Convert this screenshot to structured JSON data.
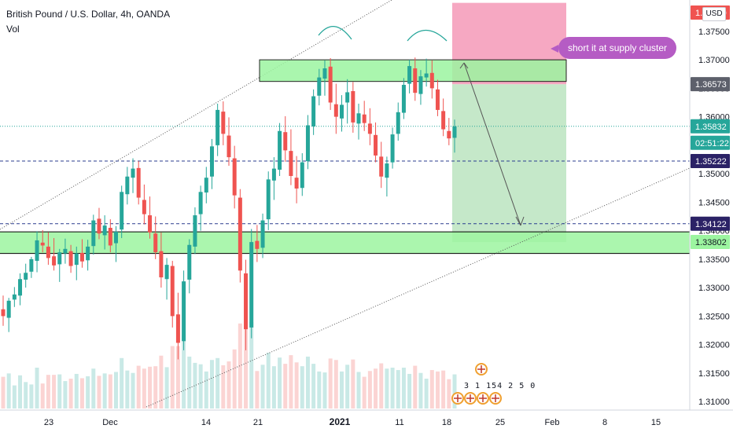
{
  "header": {
    "symbol_line": "British Pound / U.S. Dollar, 4h, OANDA",
    "indicator": "Vol"
  },
  "currency_button": "USD",
  "annotation": "short it at supply cluster",
  "event_markers_text": "3 1 154 2   5 0",
  "colors": {
    "bull": "#26a69a",
    "bear": "#ef5350",
    "zone_green": "#9cf5a0",
    "profit_zone": "#bfe6c3",
    "loss_zone": "#f5a3bf",
    "hline_blue": "#2b3d8f",
    "callout": "#b55cc4"
  },
  "chart_data": {
    "type": "candlestick",
    "symbol": "British Pound / U.S. Dollar",
    "timeframe": "4h",
    "source": "OANDA",
    "ylim": [
      1.3085,
      1.3805
    ],
    "y_tick_labels": [
      "1.31000",
      "1.31500",
      "1.32000",
      "1.32500",
      "1.33000",
      "1.33500",
      "1.34000",
      "1.34500",
      "1.35000",
      "1.35500",
      "1.36000",
      "1.36500",
      "1.37000",
      "1.37500"
    ],
    "x_tick_labels": [
      "23",
      "Dec",
      "14",
      "21",
      "2021",
      "11",
      "18",
      "25",
      "Feb",
      "8",
      "15"
    ],
    "price_labels": [
      {
        "label": "1.38000",
        "color": "#f05350",
        "text_color": "#ffffff"
      },
      {
        "label": "1.36573",
        "color": "#5d606b",
        "text_color": "#ffffff"
      },
      {
        "label": "1.35832",
        "color": "#26a69a",
        "text_color": "#ffffff"
      },
      {
        "label": "02:51:22",
        "color": "#26a69a",
        "text_color": "#ffffff"
      },
      {
        "label": "1.35222",
        "color": "#2b2266",
        "text_color": "#ffffff"
      },
      {
        "label": "1.34122",
        "color": "#2b2266",
        "text_color": "#ffffff"
      },
      {
        "label": "1.33802",
        "color": "#9cf5a0",
        "text_color": "#131722"
      }
    ],
    "horizontal_levels": [
      {
        "price": 1.35222,
        "style": "dashed",
        "color": "#2b3d8f"
      },
      {
        "price": 1.34122,
        "style": "dashed",
        "color": "#2b3d8f"
      },
      {
        "price": 1.35832,
        "style": "dotted",
        "color": "#26a69a"
      }
    ],
    "zones": [
      {
        "name": "supply",
        "top": 1.37,
        "bottom": 1.3662,
        "color": "#9cf5a0"
      },
      {
        "name": "demand",
        "top": 1.3398,
        "bottom": 1.336,
        "color": "#9cf5a0"
      }
    ],
    "trade": {
      "entry": 1.3657,
      "stop": 1.38,
      "target": 1.338,
      "current": 1.3583
    },
    "ohlc_series": [
      [
        1.3262,
        1.3286,
        1.3233,
        1.325
      ],
      [
        1.3247,
        1.3282,
        1.3222,
        1.3277
      ],
      [
        1.3279,
        1.3301,
        1.3266,
        1.3288
      ],
      [
        1.3286,
        1.3325,
        1.3269,
        1.3315
      ],
      [
        1.3314,
        1.3342,
        1.33,
        1.3326
      ],
      [
        1.3328,
        1.3354,
        1.3317,
        1.335
      ],
      [
        1.3347,
        1.3399,
        1.3327,
        1.3383
      ],
      [
        1.3379,
        1.3401,
        1.3362,
        1.3374
      ],
      [
        1.3372,
        1.3397,
        1.334,
        1.3352
      ],
      [
        1.3355,
        1.3387,
        1.333,
        1.3339
      ],
      [
        1.3341,
        1.3368,
        1.331,
        1.3362
      ],
      [
        1.336,
        1.3386,
        1.3342,
        1.3368
      ],
      [
        1.3364,
        1.3375,
        1.3326,
        1.3338
      ],
      [
        1.334,
        1.3372,
        1.3313,
        1.336
      ],
      [
        1.3361,
        1.3385,
        1.3335,
        1.3346
      ],
      [
        1.3348,
        1.3384,
        1.333,
        1.3372
      ],
      [
        1.3373,
        1.3428,
        1.3358,
        1.3418
      ],
      [
        1.3421,
        1.344,
        1.3385,
        1.3395
      ],
      [
        1.3392,
        1.3427,
        1.3367,
        1.3409
      ],
      [
        1.3405,
        1.342,
        1.3362,
        1.3374
      ],
      [
        1.3378,
        1.3408,
        1.3345,
        1.3398
      ],
      [
        1.3402,
        1.3479,
        1.3387,
        1.3468
      ],
      [
        1.3464,
        1.3512,
        1.3446,
        1.3495
      ],
      [
        1.3493,
        1.3527,
        1.3466,
        1.3509
      ],
      [
        1.351,
        1.3522,
        1.3446,
        1.3458
      ],
      [
        1.3454,
        1.3481,
        1.3411,
        1.3429
      ],
      [
        1.3427,
        1.346,
        1.3386,
        1.3397
      ],
      [
        1.3395,
        1.3425,
        1.335,
        1.3362
      ],
      [
        1.3364,
        1.3397,
        1.33,
        1.3318
      ],
      [
        1.3315,
        1.3352,
        1.3279,
        1.334
      ],
      [
        1.3338,
        1.3347,
        1.323,
        1.325
      ],
      [
        1.3253,
        1.3291,
        1.3174,
        1.3203
      ],
      [
        1.3206,
        1.333,
        1.319,
        1.3311
      ],
      [
        1.3314,
        1.3385,
        1.329,
        1.3375
      ],
      [
        1.3372,
        1.3441,
        1.3359,
        1.3427
      ],
      [
        1.3429,
        1.3479,
        1.34,
        1.3468
      ],
      [
        1.3467,
        1.3512,
        1.3448,
        1.3493
      ],
      [
        1.3495,
        1.3561,
        1.3473,
        1.3548
      ],
      [
        1.355,
        1.3623,
        1.3531,
        1.3612
      ],
      [
        1.3609,
        1.3627,
        1.355,
        1.357
      ],
      [
        1.3567,
        1.3599,
        1.3514,
        1.3529
      ],
      [
        1.3527,
        1.3549,
        1.3439,
        1.3462
      ],
      [
        1.3458,
        1.3473,
        1.3309,
        1.333
      ],
      [
        1.3325,
        1.3349,
        1.319,
        1.3227
      ],
      [
        1.323,
        1.3403,
        1.3211,
        1.338
      ],
      [
        1.3382,
        1.341,
        1.3345,
        1.3368
      ],
      [
        1.337,
        1.343,
        1.3352,
        1.3418
      ],
      [
        1.342,
        1.3504,
        1.3401,
        1.349
      ],
      [
        1.3488,
        1.3529,
        1.3454,
        1.3509
      ],
      [
        1.3507,
        1.3589,
        1.3496,
        1.3575
      ],
      [
        1.3573,
        1.3601,
        1.3521,
        1.3541
      ],
      [
        1.354,
        1.3578,
        1.348,
        1.3496
      ],
      [
        1.3493,
        1.3531,
        1.3448,
        1.3474
      ],
      [
        1.3475,
        1.3536,
        1.3461,
        1.352
      ],
      [
        1.3522,
        1.3603,
        1.3508,
        1.3585
      ],
      [
        1.3583,
        1.3648,
        1.3568,
        1.3636
      ],
      [
        1.3637,
        1.3684,
        1.362,
        1.3669
      ],
      [
        1.3667,
        1.3699,
        1.3637,
        1.3685
      ],
      [
        1.3688,
        1.3703,
        1.3612,
        1.3625
      ],
      [
        1.3622,
        1.3658,
        1.357,
        1.36
      ],
      [
        1.3597,
        1.3638,
        1.3574,
        1.3621
      ],
      [
        1.3625,
        1.3666,
        1.3588,
        1.3643
      ],
      [
        1.3645,
        1.3661,
        1.3572,
        1.359
      ],
      [
        1.3588,
        1.3623,
        1.356,
        1.3606
      ],
      [
        1.3604,
        1.3628,
        1.3575,
        1.3589
      ],
      [
        1.3588,
        1.3615,
        1.355,
        1.357
      ],
      [
        1.3568,
        1.359,
        1.352,
        1.3532
      ],
      [
        1.353,
        1.3556,
        1.3475,
        1.3495
      ],
      [
        1.3493,
        1.353,
        1.346,
        1.3518
      ],
      [
        1.352,
        1.3581,
        1.3509,
        1.3569
      ],
      [
        1.357,
        1.3625,
        1.3558,
        1.3608
      ],
      [
        1.3607,
        1.3668,
        1.3596,
        1.3656
      ],
      [
        1.3658,
        1.37,
        1.3641,
        1.3689
      ],
      [
        1.3685,
        1.3704,
        1.3628,
        1.3642
      ],
      [
        1.364,
        1.3682,
        1.3621,
        1.3671
      ],
      [
        1.3669,
        1.3702,
        1.3653,
        1.3676
      ],
      [
        1.3677,
        1.3699,
        1.3632,
        1.365
      ],
      [
        1.3648,
        1.3665,
        1.3601,
        1.3612
      ],
      [
        1.361,
        1.3632,
        1.3566,
        1.3578
      ],
      [
        1.3575,
        1.3598,
        1.355,
        1.3562
      ],
      [
        1.3563,
        1.3595,
        1.3537,
        1.3583
      ]
    ]
  }
}
